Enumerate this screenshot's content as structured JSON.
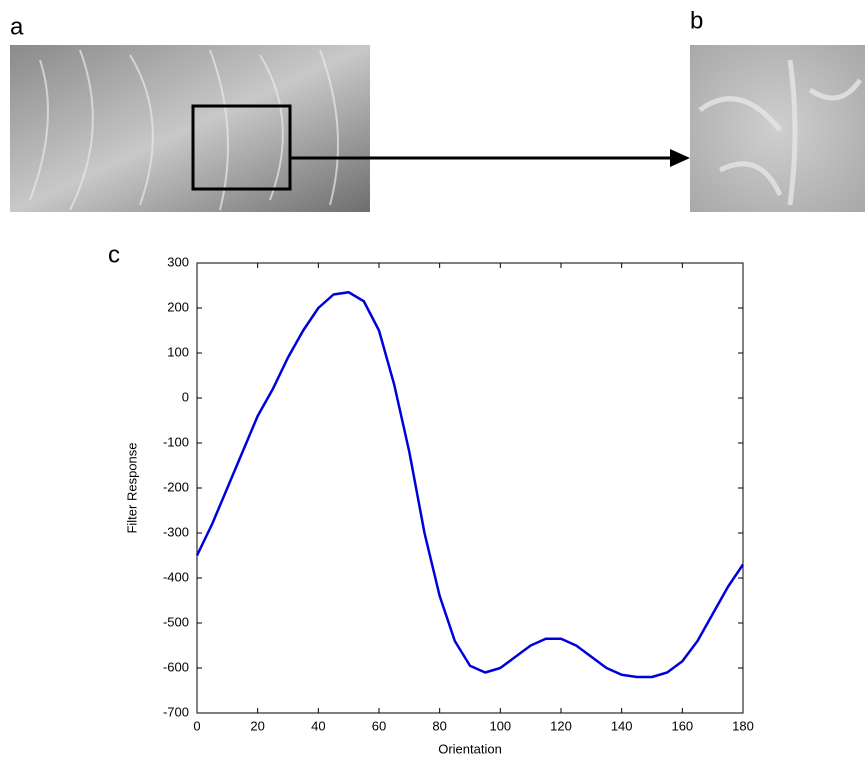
{
  "panel_labels": [
    "a",
    "b",
    "c"
  ],
  "chart_data": {
    "type": "line",
    "xlabel": "Orientation",
    "ylabel": "Filter Response",
    "x": [
      0,
      5,
      10,
      15,
      20,
      25,
      30,
      35,
      40,
      45,
      50,
      55,
      60,
      65,
      70,
      75,
      80,
      85,
      90,
      95,
      100,
      105,
      110,
      115,
      120,
      125,
      130,
      135,
      140,
      145,
      150,
      155,
      160,
      165,
      170,
      175,
      180
    ],
    "values": [
      -350,
      -280,
      -200,
      -120,
      -40,
      20,
      90,
      150,
      200,
      230,
      235,
      215,
      150,
      30,
      -120,
      -300,
      -440,
      -540,
      -595,
      -610,
      -600,
      -575,
      -550,
      -535,
      -535,
      -550,
      -575,
      -600,
      -615,
      -620,
      -620,
      -610,
      -585,
      -540,
      -480,
      -420,
      -370
    ],
    "color": "#0000dd",
    "xlim": [
      0,
      180
    ],
    "xticks": [
      0,
      20,
      40,
      60,
      80,
      100,
      120,
      140,
      160,
      180
    ],
    "ylim": [
      -700,
      300
    ],
    "yticks": [
      -700,
      -600,
      -500,
      -400,
      -300,
      -200,
      -100,
      0,
      100,
      200,
      300
    ],
    "grid": false
  }
}
